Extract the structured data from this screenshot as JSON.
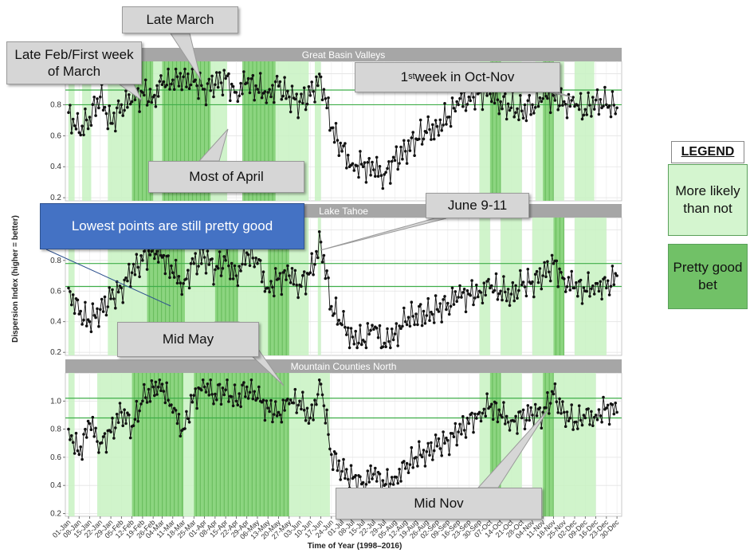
{
  "chart_data": [
    {
      "type": "line",
      "panel_title": "Great Basin Valleys",
      "ylim": [
        0.18,
        1.08
      ],
      "y_ticks": [
        0.2,
        0.4,
        0.6,
        0.8,
        1.0
      ],
      "reference_lines": [
        0.895,
        0.8
      ],
      "x": [
        "01-Jan",
        "08-Jan",
        "15-Jan",
        "22-Jan",
        "29-Jan",
        "05-Feb",
        "12-Feb",
        "19-Feb",
        "26-Feb",
        "04-Mar",
        "11-Mar",
        "18-Mar",
        "25-Mar",
        "01-Apr",
        "08-Apr",
        "15-Apr",
        "22-Apr",
        "29-Apr",
        "06-May",
        "13-May",
        "20-May",
        "27-May",
        "03-Jun",
        "10-Jun",
        "17-Jun",
        "24-Jun",
        "01-Jul",
        "08-Jul",
        "15-Jul",
        "22-Jul",
        "29-Jul",
        "05-Aug",
        "12-Aug",
        "19-Aug",
        "26-Aug",
        "02-Sep",
        "09-Sep",
        "16-Sep",
        "23-Sep",
        "30-Sep",
        "07-Oct",
        "14-Oct",
        "21-Oct",
        "28-Oct",
        "04-Nov",
        "11-Nov",
        "18-Nov",
        "25-Nov",
        "02-Dec",
        "09-Dec",
        "16-Dec",
        "23-Dec",
        "30-Dec"
      ],
      "series": [
        {
          "values": [
            0.75,
            0.62,
            0.72,
            0.85,
            0.68,
            0.8,
            0.82,
            0.88,
            0.85,
            0.93,
            0.96,
            0.98,
            0.95,
            0.9,
            0.93,
            0.97,
            0.88,
            0.94,
            0.9,
            0.88,
            0.92,
            0.85,
            0.82,
            0.86,
            0.98,
            0.65,
            0.5,
            0.42,
            0.4,
            0.38,
            0.35,
            0.44,
            0.5,
            0.58,
            0.62,
            0.66,
            0.72,
            0.8,
            0.85,
            0.88,
            0.87,
            0.82,
            0.78,
            0.76,
            0.8,
            0.84,
            0.86,
            0.82,
            0.79,
            0.77,
            0.83,
            0.8,
            0.78
          ]
        }
      ],
      "highlights": {
        "more_likely_ranges": [
          [
            "01-Jan",
            "05-Jan"
          ],
          [
            "10-Jan",
            "16-Jan"
          ],
          [
            "27-Jan",
            "16-Apr"
          ],
          [
            "28-Apr",
            "09-Jun"
          ],
          [
            "13-Jun",
            "17-Jun"
          ],
          [
            "30-Sep",
            "28-Oct"
          ],
          [
            "06-Nov",
            "25-Nov"
          ],
          [
            "02-Dec",
            "15-Dec"
          ]
        ],
        "pretty_good_ranges": [
          [
            "12-Feb",
            "26-Feb"
          ],
          [
            "04-Mar",
            "05-Apr"
          ],
          [
            "26-Apr",
            "18-May"
          ],
          [
            "07-Oct",
            "14-Oct"
          ],
          [
            "11-Nov",
            "18-Nov"
          ]
        ]
      }
    },
    {
      "type": "line",
      "panel_title": "Lake Tahoe",
      "ylim": [
        0.18,
        1.08
      ],
      "y_ticks": [
        0.2,
        0.4,
        0.6,
        0.8,
        1.0
      ],
      "reference_lines": [
        0.78,
        0.63
      ],
      "x": [
        "01-Jan",
        "08-Jan",
        "15-Jan",
        "22-Jan",
        "29-Jan",
        "05-Feb",
        "12-Feb",
        "19-Feb",
        "26-Feb",
        "04-Mar",
        "11-Mar",
        "18-Mar",
        "25-Mar",
        "01-Apr",
        "08-Apr",
        "15-Apr",
        "22-Apr",
        "29-Apr",
        "06-May",
        "13-May",
        "20-May",
        "27-May",
        "03-Jun",
        "10-Jun",
        "17-Jun",
        "24-Jun",
        "01-Jul",
        "08-Jul",
        "15-Jul",
        "22-Jul",
        "29-Jul",
        "05-Aug",
        "12-Aug",
        "19-Aug",
        "26-Aug",
        "02-Sep",
        "09-Sep",
        "16-Sep",
        "23-Sep",
        "30-Sep",
        "07-Oct",
        "14-Oct",
        "21-Oct",
        "28-Oct",
        "04-Nov",
        "11-Nov",
        "18-Nov",
        "25-Nov",
        "02-Dec",
        "09-Dec",
        "16-Dec",
        "23-Dec",
        "30-Dec"
      ],
      "series": [
        {
          "values": [
            0.62,
            0.45,
            0.4,
            0.48,
            0.55,
            0.62,
            0.72,
            0.8,
            0.88,
            0.82,
            0.72,
            0.65,
            0.78,
            0.82,
            0.74,
            0.8,
            0.7,
            0.85,
            0.78,
            0.62,
            0.68,
            0.7,
            0.64,
            0.72,
            0.92,
            0.5,
            0.38,
            0.3,
            0.28,
            0.35,
            0.26,
            0.32,
            0.4,
            0.45,
            0.44,
            0.48,
            0.52,
            0.56,
            0.58,
            0.6,
            0.62,
            0.6,
            0.58,
            0.64,
            0.66,
            0.7,
            0.78,
            0.68,
            0.62,
            0.6,
            0.65,
            0.62,
            0.7
          ]
        }
      ],
      "highlights": {
        "more_likely_ranges": [
          [
            "01-Jan",
            "05-Jan"
          ],
          [
            "27-Jan",
            "09-Jun"
          ],
          [
            "15-Jun",
            "17-Jun"
          ],
          [
            "30-Sep",
            "07-Oct"
          ],
          [
            "14-Oct",
            "28-Oct"
          ],
          [
            "04-Nov",
            "25-Nov"
          ],
          [
            "02-Dec",
            "23-Dec"
          ]
        ],
        "pretty_good_ranges": [
          [
            "22-Feb",
            "19-Mar"
          ],
          [
            "08-Apr",
            "23-Apr"
          ],
          [
            "13-May",
            "27-May"
          ],
          [
            "18-Nov",
            "25-Nov"
          ]
        ]
      }
    },
    {
      "type": "line",
      "panel_title": "Mountain Counties North",
      "ylim": [
        0.18,
        1.2
      ],
      "y_ticks": [
        0.2,
        0.4,
        0.6,
        0.8,
        1.0
      ],
      "reference_lines": [
        1.02,
        0.88
      ],
      "x": [
        "01-Jan",
        "08-Jan",
        "15-Jan",
        "22-Jan",
        "29-Jan",
        "05-Feb",
        "12-Feb",
        "19-Feb",
        "26-Feb",
        "04-Mar",
        "11-Mar",
        "18-Mar",
        "25-Mar",
        "01-Apr",
        "08-Apr",
        "15-Apr",
        "22-Apr",
        "29-Apr",
        "06-May",
        "13-May",
        "20-May",
        "27-May",
        "03-Jun",
        "10-Jun",
        "17-Jun",
        "24-Jun",
        "01-Jul",
        "08-Jul",
        "15-Jul",
        "22-Jul",
        "29-Jul",
        "05-Aug",
        "12-Aug",
        "19-Aug",
        "26-Aug",
        "02-Sep",
        "09-Sep",
        "16-Sep",
        "23-Sep",
        "30-Sep",
        "07-Oct",
        "14-Oct",
        "21-Oct",
        "28-Oct",
        "04-Nov",
        "11-Nov",
        "18-Nov",
        "25-Nov",
        "02-Dec",
        "09-Dec",
        "16-Dec",
        "23-Dec",
        "30-Dec"
      ],
      "series": [
        {
          "values": [
            0.8,
            0.62,
            0.84,
            0.7,
            0.78,
            0.92,
            0.82,
            1.0,
            1.1,
            1.12,
            0.92,
            0.8,
            1.04,
            1.1,
            1.05,
            1.08,
            1.0,
            1.1,
            1.02,
            0.95,
            0.92,
            0.98,
            1.0,
            0.88,
            1.12,
            0.62,
            0.5,
            0.45,
            0.42,
            0.48,
            0.4,
            0.46,
            0.52,
            0.6,
            0.64,
            0.68,
            0.72,
            0.78,
            0.84,
            0.92,
            0.96,
            0.9,
            0.86,
            0.88,
            0.9,
            0.92,
            1.05,
            0.92,
            0.85,
            0.88,
            0.9,
            0.95,
            0.92
          ]
        }
      ],
      "highlights": {
        "more_likely_ranges": [
          [
            "01-Jan",
            "05-Jan"
          ],
          [
            "20-Jan",
            "23-Jun"
          ],
          [
            "30-Sep",
            "28-Oct"
          ],
          [
            "04-Nov",
            "16-Dec"
          ]
        ],
        "pretty_good_ranges": [
          [
            "12-Feb",
            "18-Mar"
          ],
          [
            "25-Mar",
            "27-May"
          ],
          [
            "07-Oct",
            "14-Oct"
          ],
          [
            "11-Nov",
            "18-Nov"
          ]
        ]
      }
    }
  ],
  "axes": {
    "ylabel": "Dispersion Index (higher = better)",
    "xlabel": "Time of Year (1998–2016)"
  },
  "annotations": {
    "late_march": "Late March",
    "late_feb": "Late Feb/First week of March",
    "oct_nov_pre": "1",
    "oct_nov_sup": "st",
    "oct_nov_post": " week in Oct-Nov",
    "most_april": "Most of April",
    "june": "June 9-11",
    "lowest": "Lowest points are still pretty good",
    "mid_may": "Mid May",
    "mid_nov": "Mid Nov"
  },
  "legend": {
    "title": "LEGEND",
    "light_label": "More likely than not",
    "dark_label": "Pretty good bet"
  },
  "colors": {
    "light_green": "#c8f2c2",
    "dark_green": "#7bcd6d",
    "ref_line": "#3fae49",
    "strip": "#a6a6a6",
    "series": "#111111",
    "callout": "#d6d6d6",
    "callout_blue": "#4472c4"
  }
}
